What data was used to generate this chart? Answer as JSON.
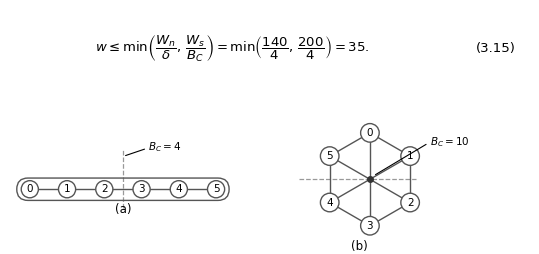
{
  "formula_tag": "(3.15)",
  "ring_label": "$B_C=4$",
  "ring_caption": "(a)",
  "cayley_label": "$B_C=10$",
  "cayley_caption": "(b)",
  "edge_color": "#555555",
  "bisect_color": "#999999",
  "font_size": 7.5,
  "caption_font_size": 8.5
}
